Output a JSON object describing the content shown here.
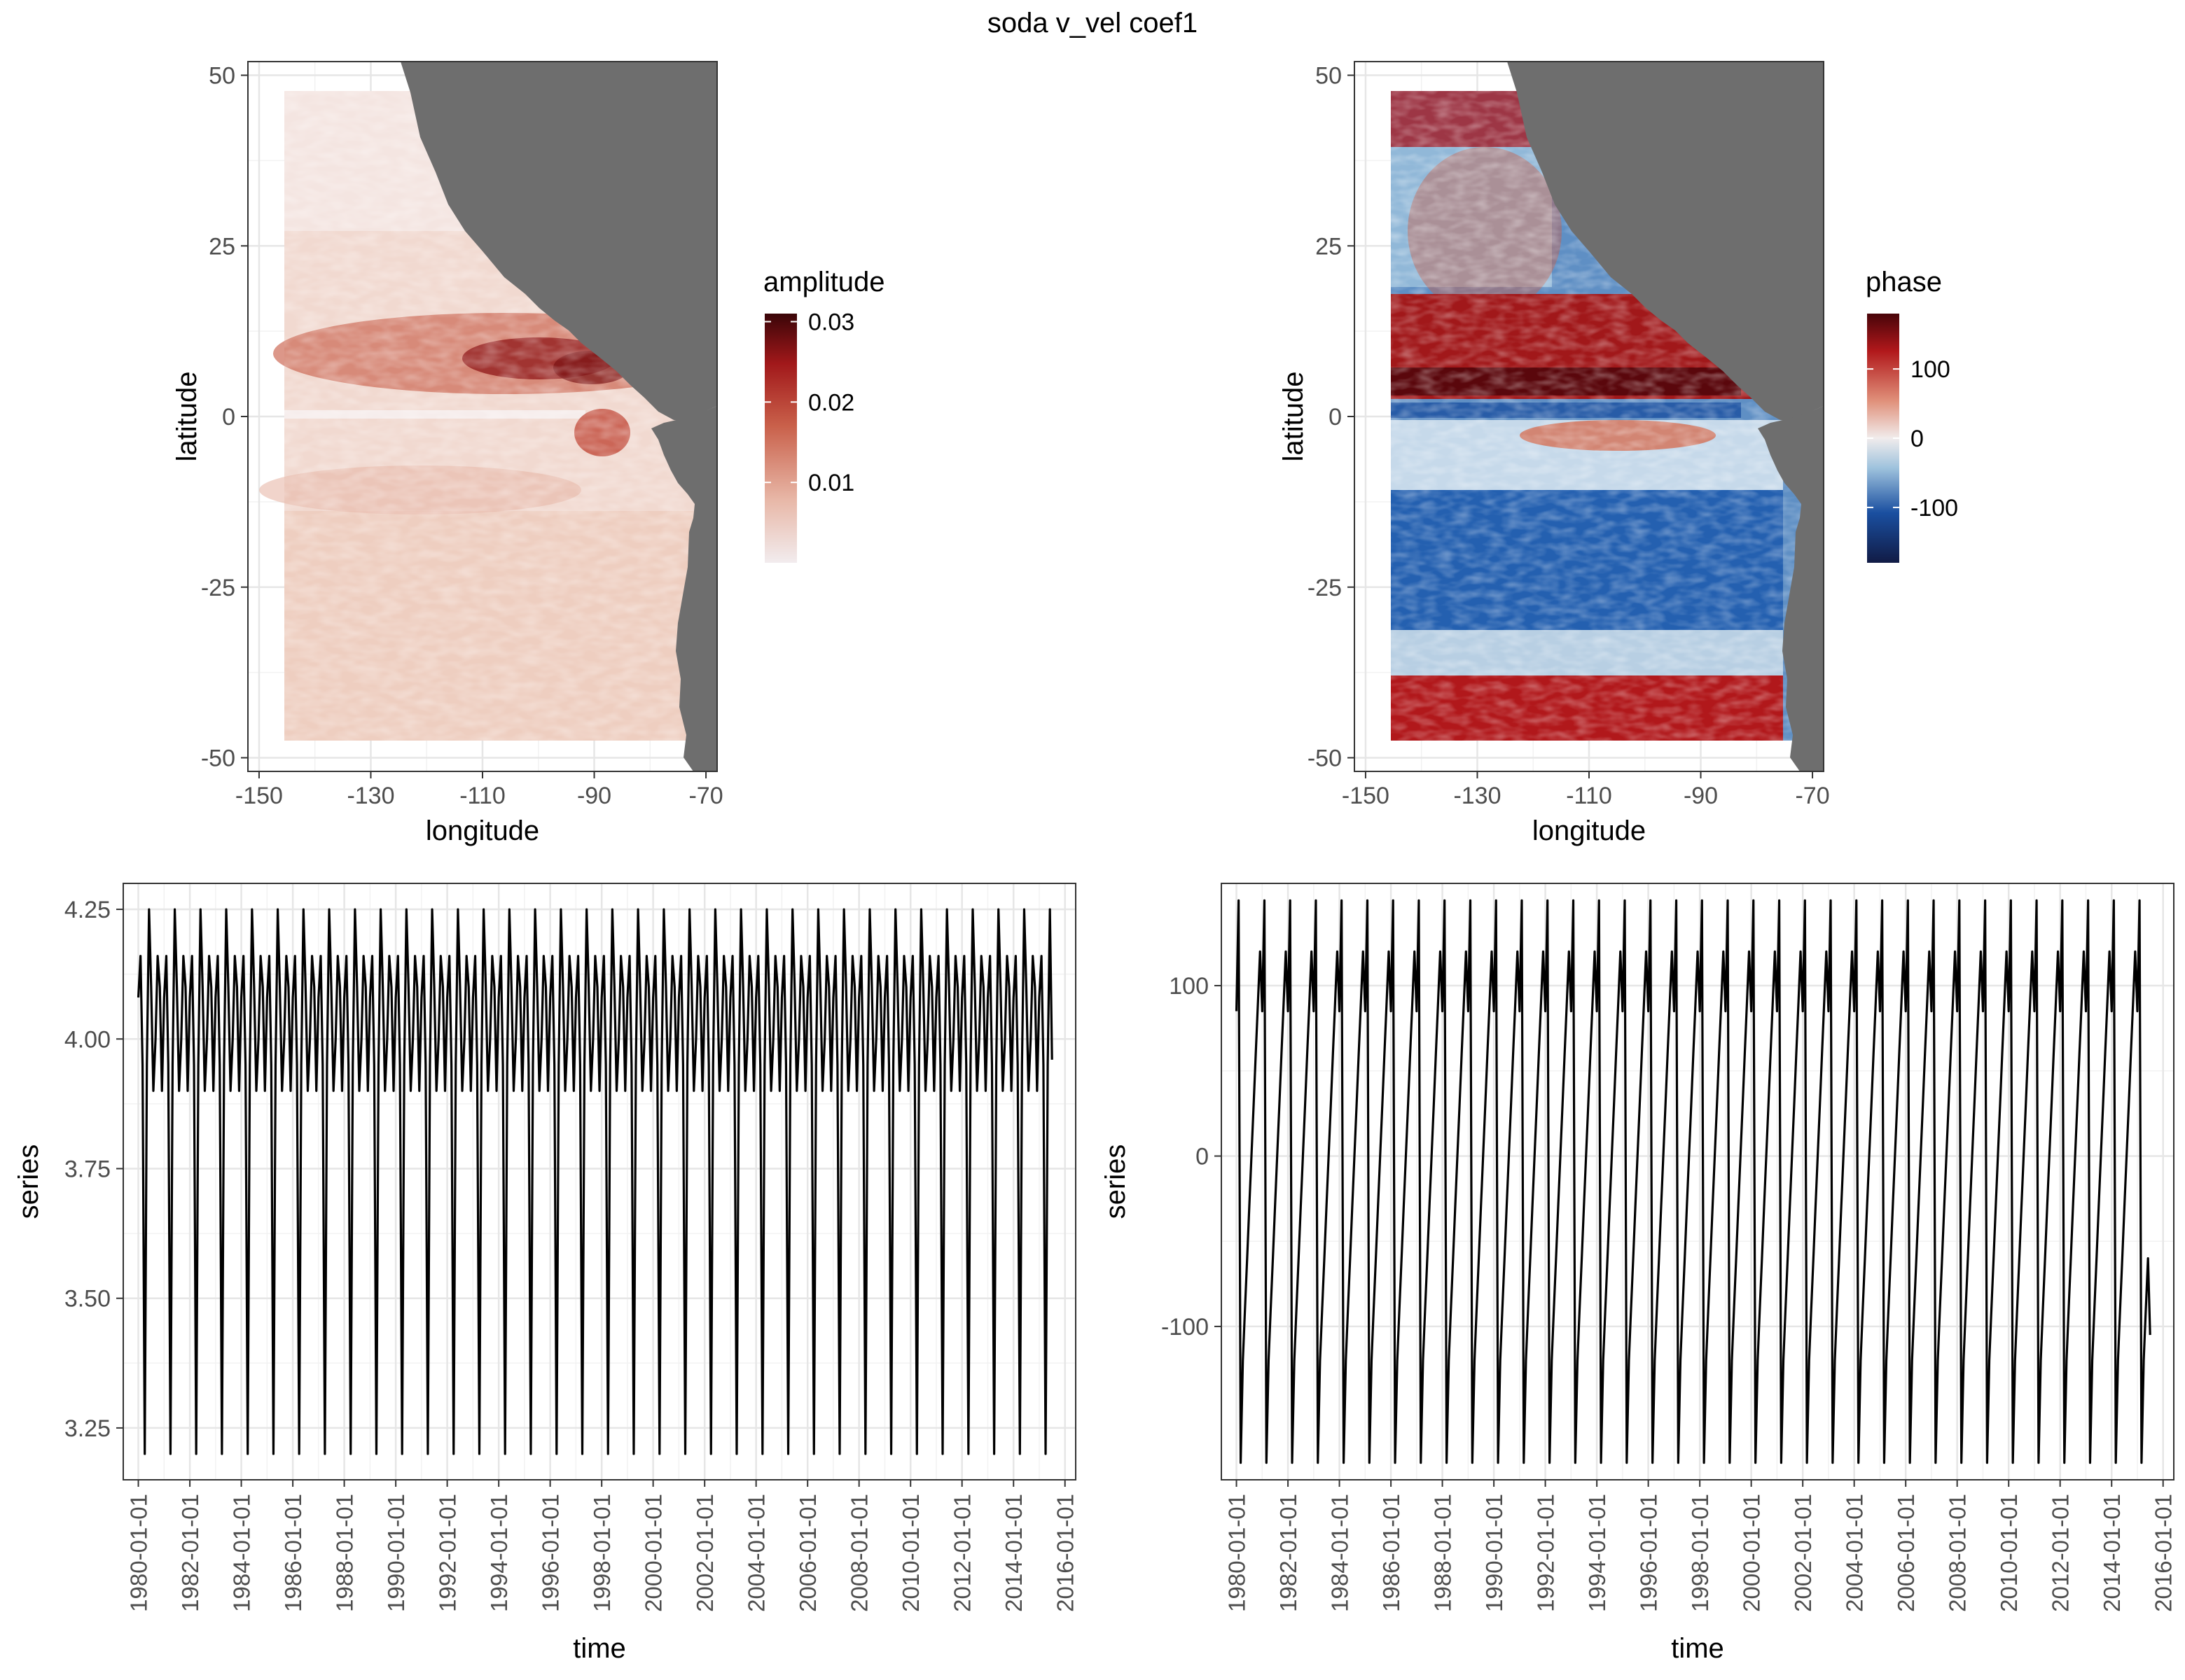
{
  "figure": {
    "title": "soda v_vel coef1"
  },
  "colors": {
    "land": "#6e6e6e",
    "grid_major": "#e6e6e6",
    "grid_minor": "#f2f2f2",
    "axis_text": "#4d4d4d",
    "line": "#000000",
    "amp_scale": [
      "#f2ecee",
      "#e8b8a8",
      "#c9604a",
      "#a1181a",
      "#3a0508"
    ],
    "phase_scale": [
      "#111b45",
      "#1a4fa0",
      "#9ec2dd",
      "#f1ecec",
      "#e0907a",
      "#b1181b",
      "#480409"
    ]
  },
  "chart_data": [
    {
      "id": "amplitude-map",
      "type": "heatmap",
      "title": "",
      "xlabel": "longitude",
      "ylabel": "latitude",
      "xlim": [
        -152,
        -68
      ],
      "ylim": [
        -52,
        52
      ],
      "x_ticks": [
        -150,
        -130,
        -110,
        -90,
        -70
      ],
      "y_ticks": [
        -50,
        -25,
        0,
        25,
        50
      ],
      "legend_title": "amplitude",
      "legend_breaks": [
        0.01,
        0.02,
        0.03
      ],
      "value_range": [
        0.0,
        0.031
      ],
      "grid": true,
      "legend_position": "right"
    },
    {
      "id": "phase-map",
      "type": "heatmap",
      "title": "",
      "xlabel": "longitude",
      "ylabel": "latitude",
      "xlim": [
        -152,
        -68
      ],
      "ylim": [
        -52,
        52
      ],
      "x_ticks": [
        -150,
        -130,
        -110,
        -90,
        -70
      ],
      "y_ticks": [
        -50,
        -25,
        0,
        25,
        50
      ],
      "legend_title": "phase",
      "legend_breaks": [
        -100,
        0,
        100
      ],
      "value_range": [
        -180,
        180
      ],
      "grid": true,
      "legend_position": "right"
    },
    {
      "id": "amplitude-series",
      "type": "line",
      "title": "",
      "xlabel": "time",
      "ylabel": "series",
      "x_start": "1980-01-01",
      "x_end": "2015-07-01",
      "xlim": [
        "1979-06-01",
        "2016-06-01"
      ],
      "ylim": [
        3.15,
        4.3
      ],
      "x_ticks": [
        "1980-01-01",
        "1982-01-01",
        "1984-01-01",
        "1986-01-01",
        "1988-01-01",
        "1990-01-01",
        "1992-01-01",
        "1994-01-01",
        "1996-01-01",
        "1998-01-01",
        "2000-01-01",
        "2002-01-01",
        "2004-01-01",
        "2006-01-01",
        "2008-01-01",
        "2010-01-01",
        "2012-01-01",
        "2014-01-01",
        "2016-01-01"
      ],
      "y_ticks": [
        "3.25",
        "3.50",
        "3.75",
        "4.00",
        "4.25"
      ],
      "monthly_cycle": [
        4.08,
        4.16,
        3.95,
        3.2,
        3.95,
        4.25,
        4.1,
        3.9,
        4.0,
        4.16,
        4.1,
        3.9
      ],
      "final_value": 3.96,
      "grid": true
    },
    {
      "id": "phase-series",
      "type": "line",
      "title": "",
      "xlabel": "time",
      "ylabel": "series",
      "x_start": "1980-01-01",
      "x_end": "2015-07-01",
      "xlim": [
        "1979-06-01",
        "2016-06-01"
      ],
      "ylim": [
        -190,
        160
      ],
      "x_ticks": [
        "1980-01-01",
        "1982-01-01",
        "1984-01-01",
        "1986-01-01",
        "1988-01-01",
        "1990-01-01",
        "1992-01-01",
        "1994-01-01",
        "1996-01-01",
        "1998-01-01",
        "2000-01-01",
        "2002-01-01",
        "2004-01-01",
        "2006-01-01",
        "2008-01-01",
        "2010-01-01",
        "2012-01-01",
        "2014-01-01",
        "2016-01-01"
      ],
      "y_ticks": [
        "-100",
        "0",
        "100"
      ],
      "monthly_cycle": [
        85,
        150,
        -180,
        -120,
        -90,
        -60,
        -30,
        0,
        30,
        60,
        90,
        120
      ],
      "final_value": -105,
      "grid": true
    }
  ]
}
